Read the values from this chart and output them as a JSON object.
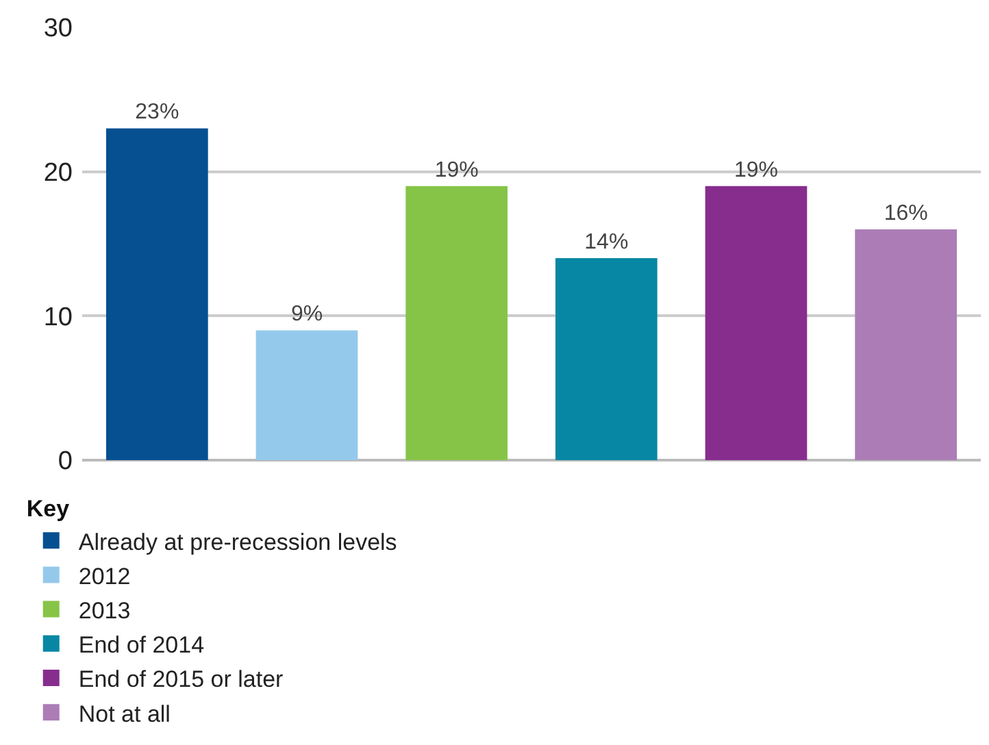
{
  "chart_data": {
    "type": "bar",
    "categories": [
      null,
      null,
      null,
      null,
      null,
      null
    ],
    "series": [
      {
        "name": "Already at pre-recession levels",
        "color": "#064f91",
        "values": [
          23,
          null,
          null,
          null,
          null,
          null
        ],
        "value_labels": [
          "23%",
          null,
          null,
          null,
          null,
          null
        ]
      },
      {
        "name": "2012",
        "color": "#94c9ec",
        "values": [
          null,
          9,
          null,
          null,
          null,
          null
        ],
        "value_labels": [
          null,
          "9%",
          null,
          null,
          null,
          null
        ]
      },
      {
        "name": "2013",
        "color": "#86c447",
        "values": [
          null,
          null,
          19,
          null,
          null,
          null
        ],
        "value_labels": [
          null,
          null,
          "19%",
          null,
          null,
          null
        ]
      },
      {
        "name": "End of 2014",
        "color": "#0787a4",
        "values": [
          null,
          null,
          null,
          14,
          null,
          null
        ],
        "value_labels": [
          null,
          null,
          null,
          "14%",
          null,
          null
        ]
      },
      {
        "name": "End of 2015 or later",
        "color": "#872d8e",
        "values": [
          null,
          null,
          null,
          null,
          19,
          null
        ],
        "value_labels": [
          null,
          null,
          null,
          null,
          "19%",
          null
        ]
      },
      {
        "name": "Not at all",
        "color": "#ab7cb6",
        "values": [
          null,
          null,
          null,
          null,
          null,
          16
        ],
        "value_labels": [
          null,
          null,
          null,
          null,
          null,
          "16%"
        ]
      }
    ],
    "legend_title": "Key",
    "ylim": [
      0,
      30
    ],
    "yticks": [
      0,
      10,
      20,
      30
    ],
    "grid": "y",
    "legend": "bottom",
    "tick_labels": "y"
  }
}
